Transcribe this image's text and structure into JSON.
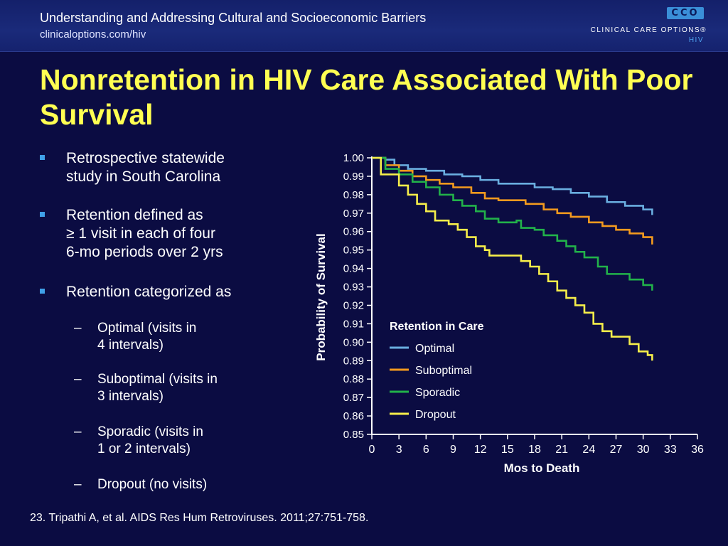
{
  "header": {
    "title": "Understanding and Addressing Cultural and Socioeconomic Barriers",
    "url": "clinicaloptions.com/hiv",
    "logo_mark": "CCO",
    "logo_text": "CLINICAL CARE OPTIONS®",
    "logo_sub": "HIV"
  },
  "slide": {
    "title": "Nonretention in HIV Care Associated With Poor Survival",
    "bullets": [
      {
        "text": "Retrospective statewide\nstudy in South Carolina"
      },
      {
        "text": "Retention defined as\n≥ 1 visit in each of four\n6-mo periods over 2 yrs"
      },
      {
        "text": "Retention categorized as"
      }
    ],
    "subbullets": [
      {
        "text": "Optimal (visits in\n4 intervals)"
      },
      {
        "text": "Suboptimal (visits in\n3 intervals)"
      },
      {
        "text": "Sporadic (visits in\n1 or 2 intervals)"
      },
      {
        "text": "Dropout (no visits)"
      }
    ],
    "footnote": "23. Tripathi A, et al. AIDS Res Hum Retroviruses. 2011;27:751-758."
  },
  "chart_data": {
    "type": "line",
    "xlabel": "Mos to Death",
    "ylabel": "Probability of Survival",
    "xlim": [
      0,
      36
    ],
    "ylim": [
      0.85,
      1.0
    ],
    "xticks": [
      "0",
      "3",
      "6",
      "9",
      "12",
      "15",
      "18",
      "21",
      "24",
      "27",
      "30",
      "33",
      "36"
    ],
    "yticks": [
      "1.00",
      "0.99",
      "0.98",
      "0.97",
      "0.96",
      "0.95",
      "0.94",
      "0.93",
      "0.92",
      "0.91",
      "0.90",
      "0.89",
      "0.88",
      "0.87",
      "0.86",
      "0.85"
    ],
    "legend_title": "Retention in Care",
    "legend_position": "lower-center",
    "series": [
      {
        "name": "Optimal",
        "color": "#6aaee0",
        "points": [
          [
            0,
            1.0
          ],
          [
            1.5,
            0.999
          ],
          [
            2.5,
            0.996
          ],
          [
            4,
            0.994
          ],
          [
            6,
            0.993
          ],
          [
            8,
            0.991
          ],
          [
            10,
            0.99
          ],
          [
            12,
            0.988
          ],
          [
            14,
            0.986
          ],
          [
            16,
            0.986
          ],
          [
            18,
            0.984
          ],
          [
            20,
            0.983
          ],
          [
            22,
            0.981
          ],
          [
            24,
            0.979
          ],
          [
            26,
            0.976
          ],
          [
            28,
            0.974
          ],
          [
            30,
            0.972
          ],
          [
            31,
            0.969
          ]
        ]
      },
      {
        "name": "Suboptimal",
        "color": "#f39a1e",
        "points": [
          [
            0,
            1.0
          ],
          [
            1.5,
            0.996
          ],
          [
            3,
            0.993
          ],
          [
            4.5,
            0.99
          ],
          [
            6,
            0.988
          ],
          [
            7.5,
            0.986
          ],
          [
            9,
            0.984
          ],
          [
            11,
            0.981
          ],
          [
            12.5,
            0.978
          ],
          [
            14,
            0.977
          ],
          [
            16,
            0.977
          ],
          [
            17,
            0.975
          ],
          [
            19,
            0.972
          ],
          [
            20.5,
            0.97
          ],
          [
            22,
            0.968
          ],
          [
            24,
            0.965
          ],
          [
            25.5,
            0.963
          ],
          [
            27,
            0.961
          ],
          [
            28.5,
            0.959
          ],
          [
            30,
            0.957
          ],
          [
            31,
            0.953
          ]
        ]
      },
      {
        "name": "Sporadic",
        "color": "#22b24a",
        "points": [
          [
            0,
            1.0
          ],
          [
            1.5,
            0.994
          ],
          [
            3,
            0.991
          ],
          [
            4.5,
            0.987
          ],
          [
            6,
            0.984
          ],
          [
            7.5,
            0.98
          ],
          [
            9,
            0.977
          ],
          [
            10,
            0.974
          ],
          [
            11.5,
            0.971
          ],
          [
            12.5,
            0.967
          ],
          [
            14,
            0.965
          ],
          [
            16,
            0.966
          ],
          [
            16.5,
            0.962
          ],
          [
            18,
            0.961
          ],
          [
            19,
            0.958
          ],
          [
            20.5,
            0.955
          ],
          [
            21.5,
            0.952
          ],
          [
            22.5,
            0.949
          ],
          [
            23.5,
            0.946
          ],
          [
            25,
            0.941
          ],
          [
            26,
            0.937
          ],
          [
            28.5,
            0.934
          ],
          [
            30,
            0.931
          ],
          [
            31,
            0.928
          ]
        ]
      },
      {
        "name": "Dropout",
        "color": "#f6ee4a",
        "points": [
          [
            0,
            1.0
          ],
          [
            1,
            0.991
          ],
          [
            2.5,
            0.991
          ],
          [
            3,
            0.985
          ],
          [
            4,
            0.98
          ],
          [
            5,
            0.975
          ],
          [
            6,
            0.971
          ],
          [
            7,
            0.966
          ],
          [
            8.5,
            0.964
          ],
          [
            9.5,
            0.961
          ],
          [
            10.5,
            0.957
          ],
          [
            11.5,
            0.952
          ],
          [
            12.5,
            0.95
          ],
          [
            13,
            0.947
          ],
          [
            16,
            0.947
          ],
          [
            16.5,
            0.944
          ],
          [
            17.5,
            0.941
          ],
          [
            18.5,
            0.937
          ],
          [
            19.5,
            0.933
          ],
          [
            20.5,
            0.928
          ],
          [
            21.5,
            0.924
          ],
          [
            22.5,
            0.92
          ],
          [
            23.5,
            0.916
          ],
          [
            24.5,
            0.91
          ],
          [
            25.5,
            0.906
          ],
          [
            26.5,
            0.903
          ],
          [
            28.5,
            0.899
          ],
          [
            29.5,
            0.895
          ],
          [
            30.5,
            0.893
          ],
          [
            31,
            0.89
          ]
        ]
      }
    ]
  }
}
